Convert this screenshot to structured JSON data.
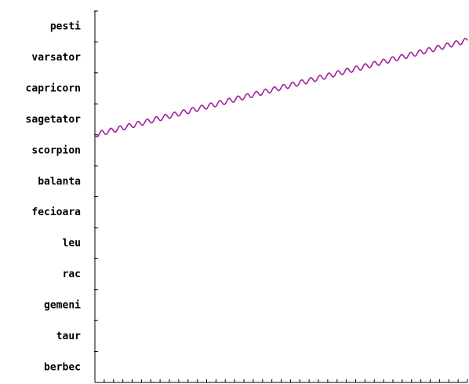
{
  "chart_data": {
    "type": "line",
    "title": "",
    "xlabel": "",
    "ylabel": "",
    "y_categories": [
      "berbec",
      "taur",
      "gemeni",
      "rac",
      "leu",
      "fecioara",
      "balanta",
      "scorpion",
      "sagetator",
      "capricorn",
      "varsator",
      "pesti"
    ],
    "x_tick_count": 41,
    "xlim": [
      0,
      40
    ],
    "grid": false,
    "legend": "none",
    "series": [
      {
        "color": "#a020a0",
        "start": [
          0,
          8.0
        ],
        "end": [
          40,
          11.05
        ],
        "oscillation": {
          "cycles": 41,
          "amplitude": 0.08
        }
      }
    ]
  }
}
